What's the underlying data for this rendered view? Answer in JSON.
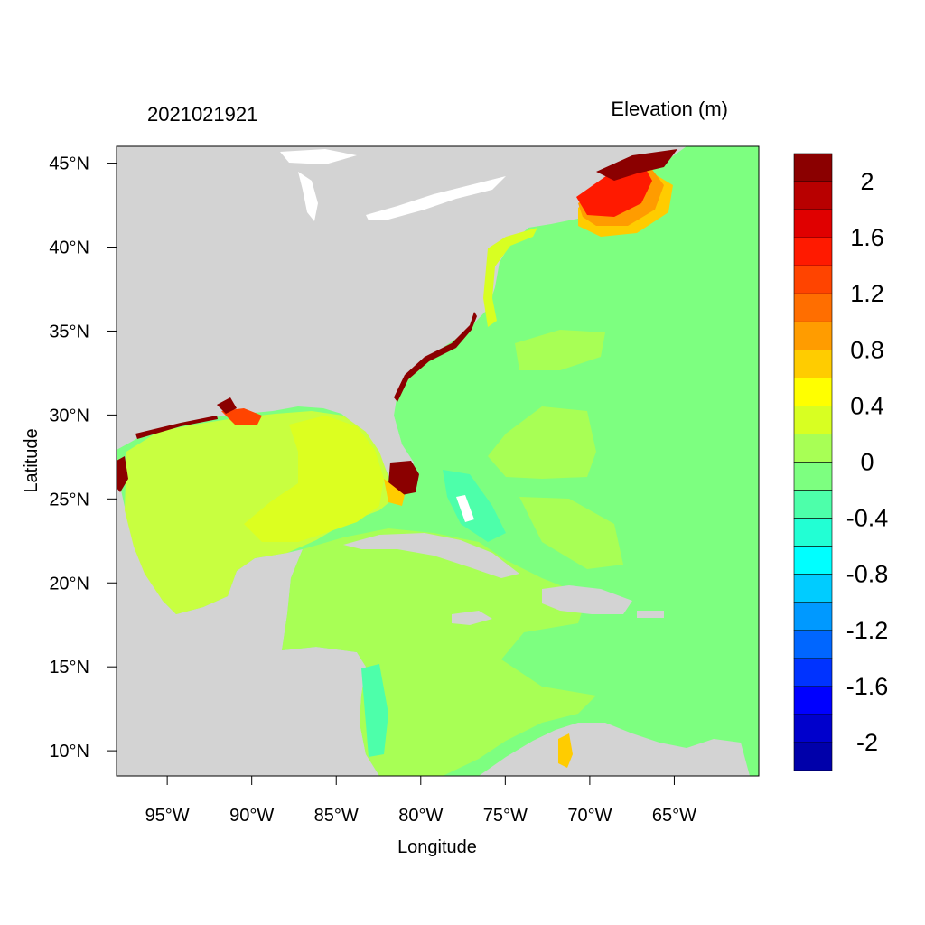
{
  "title_left": "2021021921",
  "title_right": "Elevation (m)",
  "axes": {
    "xlabel": "Longitude",
    "ylabel": "Latitude",
    "lon_range": [
      -98,
      -60
    ],
    "lat_range": [
      8.5,
      46
    ],
    "x_ticks": [
      "95°W",
      "90°W",
      "85°W",
      "80°W",
      "75°W",
      "70°W",
      "65°W"
    ],
    "y_ticks": [
      "45°N",
      "40°N",
      "35°N",
      "30°N",
      "25°N",
      "20°N",
      "15°N",
      "10°N"
    ]
  },
  "colorbar": {
    "labels": [
      "2",
      "1.6",
      "1.2",
      "0.8",
      "0.4",
      "0",
      "-0.4",
      "-0.8",
      "-1.2",
      "-1.6",
      "-2"
    ],
    "colors_top_to_bottom": [
      "#8b0000",
      "#b80000",
      "#e00000",
      "#ff1a00",
      "#ff4400",
      "#ff6e00",
      "#ff9c00",
      "#ffcc00",
      "#ffff00",
      "#d8ff22",
      "#a8ff55",
      "#7dff80",
      "#4dffaa",
      "#22ffd4",
      "#00ffff",
      "#00ccff",
      "#0099ff",
      "#0066ff",
      "#0033ff",
      "#0000ff",
      "#0000cc",
      "#0000aa"
    ]
  },
  "colors": {
    "land": "#d3d3d3",
    "ocean_zero": "#7dff80",
    "gulf": "#d4ff2b",
    "caribbean": "#a8ff55",
    "surge_max": "#8b0000"
  }
}
